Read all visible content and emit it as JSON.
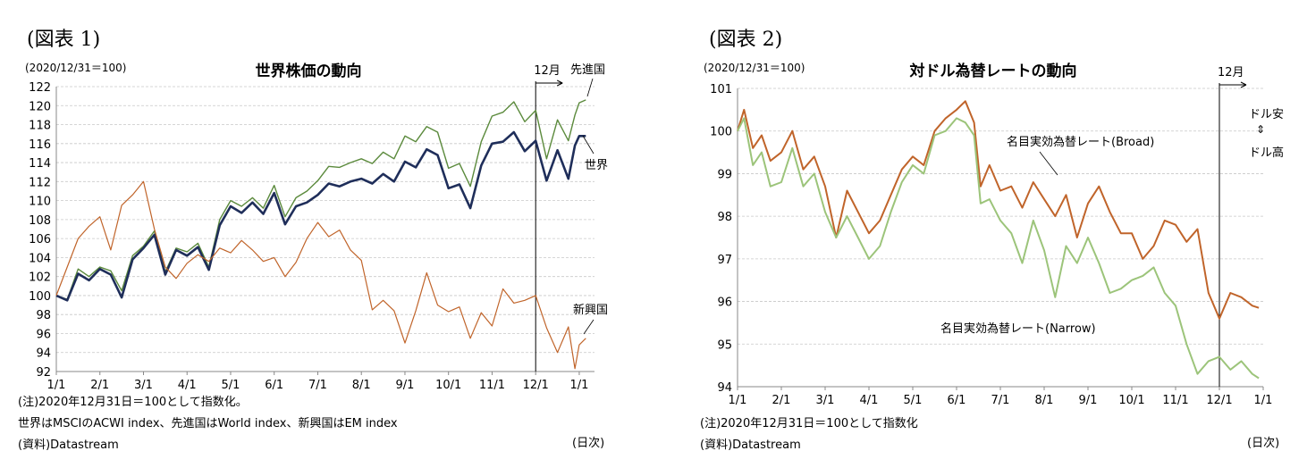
{
  "panels": [
    {
      "figure_label": "(図表 1)",
      "notes": [
        "(注)2020年12月31日＝100として指数化。",
        "世界はMSCIのACWI index、先進国はWorld index、新興国はEM index",
        "(資料)Datastream"
      ],
      "xunit": "(日次)"
    },
    {
      "figure_label": "(図表 2)",
      "notes": [
        "(注)2020年12月31日＝100として指数化",
        "(資料)Datastream"
      ],
      "xunit": "(日次)"
    }
  ],
  "chart_data": [
    {
      "type": "line",
      "title": "世界株価の動向",
      "ylabel": "(2020/12/31＝100)",
      "xlabel": "",
      "ylim": [
        92,
        122
      ],
      "ytick_step": 2,
      "x_tick_labels": [
        "1/1",
        "2/1",
        "3/1",
        "4/1",
        "5/1",
        "6/1",
        "7/1",
        "8/1",
        "9/1",
        "10/1",
        "11/1",
        "12/1",
        "1/1"
      ],
      "grid": true,
      "annotations": {
        "vline_label": "12月",
        "vline_at_month": 11
      },
      "series": [
        {
          "name": "先進国",
          "color": "#5b8a3c",
          "points": [
            [
              0,
              100
            ],
            [
              0.25,
              99.6
            ],
            [
              0.5,
              102.8
            ],
            [
              0.75,
              102
            ],
            [
              1,
              103
            ],
            [
              1.25,
              102.6
            ],
            [
              1.5,
              100.5
            ],
            [
              1.75,
              104.2
            ],
            [
              2,
              105.2
            ],
            [
              2.25,
              106.8
            ],
            [
              2.5,
              102.5
            ],
            [
              2.75,
              105
            ],
            [
              3,
              104.6
            ],
            [
              3.25,
              105.5
            ],
            [
              3.5,
              103
            ],
            [
              3.75,
              108
            ],
            [
              4,
              110
            ],
            [
              4.25,
              109.4
            ],
            [
              4.5,
              110.3
            ],
            [
              4.75,
              109.2
            ],
            [
              5,
              111.6
            ],
            [
              5.25,
              108.3
            ],
            [
              5.5,
              110.3
            ],
            [
              5.75,
              111
            ],
            [
              6,
              112.1
            ],
            [
              6.25,
              113.6
            ],
            [
              6.5,
              113.5
            ],
            [
              6.75,
              114
            ],
            [
              7,
              114.4
            ],
            [
              7.25,
              113.9
            ],
            [
              7.5,
              115.1
            ],
            [
              7.75,
              114.4
            ],
            [
              8,
              116.8
            ],
            [
              8.25,
              116.2
            ],
            [
              8.5,
              117.8
            ],
            [
              8.75,
              117.2
            ],
            [
              9,
              113.4
            ],
            [
              9.25,
              113.9
            ],
            [
              9.5,
              111.5
            ],
            [
              9.75,
              116.2
            ],
            [
              10,
              118.9
            ],
            [
              10.25,
              119.3
            ],
            [
              10.5,
              120.4
            ],
            [
              10.75,
              118.3
            ],
            [
              11,
              119.5
            ],
            [
              11.25,
              114.4
            ],
            [
              11.5,
              118.5
            ],
            [
              11.75,
              116.3
            ],
            [
              11.9,
              119
            ],
            [
              12,
              120.3
            ],
            [
              12.15,
              120.6
            ]
          ]
        },
        {
          "name": "世界",
          "color": "#1f2e5a",
          "points": [
            [
              0,
              100
            ],
            [
              0.25,
              99.5
            ],
            [
              0.5,
              102.3
            ],
            [
              0.75,
              101.6
            ],
            [
              1,
              102.8
            ],
            [
              1.25,
              102.2
            ],
            [
              1.5,
              99.8
            ],
            [
              1.75,
              103.8
            ],
            [
              2,
              105
            ],
            [
              2.25,
              106.4
            ],
            [
              2.5,
              102.2
            ],
            [
              2.75,
              104.8
            ],
            [
              3,
              104.2
            ],
            [
              3.25,
              105.1
            ],
            [
              3.5,
              102.7
            ],
            [
              3.75,
              107.4
            ],
            [
              4,
              109.4
            ],
            [
              4.25,
              108.7
            ],
            [
              4.5,
              109.8
            ],
            [
              4.75,
              108.6
            ],
            [
              5,
              110.8
            ],
            [
              5.25,
              107.5
            ],
            [
              5.5,
              109.4
            ],
            [
              5.75,
              109.8
            ],
            [
              6,
              110.6
            ],
            [
              6.25,
              111.8
            ],
            [
              6.5,
              111.5
            ],
            [
              6.75,
              112
            ],
            [
              7,
              112.3
            ],
            [
              7.25,
              111.8
            ],
            [
              7.5,
              112.8
            ],
            [
              7.75,
              112
            ],
            [
              8,
              114.1
            ],
            [
              8.25,
              113.5
            ],
            [
              8.5,
              115.4
            ],
            [
              8.75,
              114.8
            ],
            [
              9,
              111.3
            ],
            [
              9.25,
              111.7
            ],
            [
              9.5,
              109.2
            ],
            [
              9.75,
              113.7
            ],
            [
              10,
              116
            ],
            [
              10.25,
              116.2
            ],
            [
              10.5,
              117.2
            ],
            [
              10.75,
              115.2
            ],
            [
              11,
              116.3
            ],
            [
              11.25,
              112.1
            ],
            [
              11.5,
              115.3
            ],
            [
              11.75,
              112.3
            ],
            [
              11.9,
              115.8
            ],
            [
              12,
              116.8
            ],
            [
              12.15,
              116.8
            ]
          ]
        },
        {
          "name": "新興国",
          "color": "#c0642a",
          "points": [
            [
              0,
              100
            ],
            [
              0.25,
              103
            ],
            [
              0.5,
              106
            ],
            [
              0.75,
              107.3
            ],
            [
              1,
              108.3
            ],
            [
              1.25,
              104.8
            ],
            [
              1.5,
              109.5
            ],
            [
              1.75,
              110.6
            ],
            [
              2,
              112
            ],
            [
              2.25,
              107
            ],
            [
              2.5,
              103
            ],
            [
              2.75,
              101.8
            ],
            [
              3,
              103.4
            ],
            [
              3.25,
              104.3
            ],
            [
              3.5,
              103.6
            ],
            [
              3.75,
              105
            ],
            [
              4,
              104.5
            ],
            [
              4.25,
              105.8
            ],
            [
              4.5,
              104.8
            ],
            [
              4.75,
              103.6
            ],
            [
              5,
              104
            ],
            [
              5.25,
              102
            ],
            [
              5.5,
              103.5
            ],
            [
              5.75,
              106
            ],
            [
              6,
              107.7
            ],
            [
              6.25,
              106.2
            ],
            [
              6.5,
              106.9
            ],
            [
              6.75,
              104.8
            ],
            [
              7,
              103.7
            ],
            [
              7.25,
              98.5
            ],
            [
              7.5,
              99.5
            ],
            [
              7.75,
              98.4
            ],
            [
              8,
              95
            ],
            [
              8.25,
              98.4
            ],
            [
              8.5,
              102.4
            ],
            [
              8.75,
              99
            ],
            [
              9,
              98.3
            ],
            [
              9.25,
              98.8
            ],
            [
              9.5,
              95.5
            ],
            [
              9.75,
              98.2
            ],
            [
              10,
              96.8
            ],
            [
              10.25,
              100.7
            ],
            [
              10.5,
              99.2
            ],
            [
              10.75,
              99.5
            ],
            [
              11,
              100
            ],
            [
              11.25,
              96.6
            ],
            [
              11.5,
              94
            ],
            [
              11.75,
              96.7
            ],
            [
              11.9,
              92.3
            ],
            [
              12,
              94.8
            ],
            [
              12.15,
              95.5
            ]
          ]
        }
      ]
    },
    {
      "type": "line",
      "title": "対ドル為替レートの動向",
      "ylabel": "(2020/12/31＝100)",
      "xlabel": "",
      "ylim": [
        94,
        101
      ],
      "ytick_step": 1,
      "x_tick_labels": [
        "1/1",
        "2/1",
        "3/1",
        "4/1",
        "5/1",
        "6/1",
        "7/1",
        "8/1",
        "9/1",
        "10/1",
        "11/1",
        "12/1",
        "1/1"
      ],
      "grid": true,
      "annotations": {
        "vline_label": "12月",
        "vline_at_month": 11,
        "right_top": "ドル安",
        "right_arrow": "⇕",
        "right_bottom": "ドル高"
      },
      "series": [
        {
          "name": "名目実効為替レート(Broad)",
          "color": "#c0642a",
          "points": [
            [
              0,
              100
            ],
            [
              0.15,
              100.5
            ],
            [
              0.35,
              99.6
            ],
            [
              0.55,
              99.9
            ],
            [
              0.75,
              99.3
            ],
            [
              1,
              99.5
            ],
            [
              1.25,
              100
            ],
            [
              1.5,
              99.1
            ],
            [
              1.75,
              99.4
            ],
            [
              2,
              98.7
            ],
            [
              2.25,
              97.5
            ],
            [
              2.5,
              98.6
            ],
            [
              2.75,
              98.1
            ],
            [
              3,
              97.6
            ],
            [
              3.25,
              97.9
            ],
            [
              3.5,
              98.5
            ],
            [
              3.75,
              99.1
            ],
            [
              4,
              99.4
            ],
            [
              4.25,
              99.2
            ],
            [
              4.5,
              100
            ],
            [
              4.75,
              100.3
            ],
            [
              5,
              100.5
            ],
            [
              5.2,
              100.7
            ],
            [
              5.4,
              100.2
            ],
            [
              5.55,
              98.7
            ],
            [
              5.75,
              99.2
            ],
            [
              6,
              98.6
            ],
            [
              6.25,
              98.7
            ],
            [
              6.5,
              98.2
            ],
            [
              6.75,
              98.8
            ],
            [
              7,
              98.4
            ],
            [
              7.25,
              98
            ],
            [
              7.5,
              98.5
            ],
            [
              7.75,
              97.5
            ],
            [
              8,
              98.3
            ],
            [
              8.25,
              98.7
            ],
            [
              8.5,
              98.1
            ],
            [
              8.75,
              97.6
            ],
            [
              9,
              97.6
            ],
            [
              9.25,
              97
            ],
            [
              9.5,
              97.3
            ],
            [
              9.75,
              97.9
            ],
            [
              10,
              97.8
            ],
            [
              10.25,
              97.4
            ],
            [
              10.5,
              97.7
            ],
            [
              10.75,
              96.2
            ],
            [
              11,
              95.6
            ],
            [
              11.25,
              96.2
            ],
            [
              11.5,
              96.1
            ],
            [
              11.75,
              95.9
            ],
            [
              11.9,
              95.85
            ]
          ]
        },
        {
          "name": "名目実効為替レート(Narrow)",
          "color": "#9cc47a",
          "points": [
            [
              0,
              100
            ],
            [
              0.15,
              100.3
            ],
            [
              0.35,
              99.2
            ],
            [
              0.55,
              99.5
            ],
            [
              0.75,
              98.7
            ],
            [
              1,
              98.8
            ],
            [
              1.25,
              99.6
            ],
            [
              1.5,
              98.7
            ],
            [
              1.75,
              99
            ],
            [
              2,
              98.1
            ],
            [
              2.25,
              97.5
            ],
            [
              2.5,
              98
            ],
            [
              2.75,
              97.5
            ],
            [
              3,
              97
            ],
            [
              3.25,
              97.3
            ],
            [
              3.5,
              98.1
            ],
            [
              3.75,
              98.8
            ],
            [
              4,
              99.2
            ],
            [
              4.25,
              99
            ],
            [
              4.5,
              99.9
            ],
            [
              4.75,
              100
            ],
            [
              5,
              100.3
            ],
            [
              5.2,
              100.2
            ],
            [
              5.4,
              99.9
            ],
            [
              5.55,
              98.3
            ],
            [
              5.75,
              98.4
            ],
            [
              6,
              97.9
            ],
            [
              6.25,
              97.6
            ],
            [
              6.5,
              96.9
            ],
            [
              6.75,
              97.9
            ],
            [
              7,
              97.2
            ],
            [
              7.25,
              96.1
            ],
            [
              7.5,
              97.3
            ],
            [
              7.75,
              96.9
            ],
            [
              8,
              97.5
            ],
            [
              8.25,
              96.9
            ],
            [
              8.5,
              96.2
            ],
            [
              8.75,
              96.3
            ],
            [
              9,
              96.5
            ],
            [
              9.25,
              96.6
            ],
            [
              9.5,
              96.8
            ],
            [
              9.75,
              96.2
            ],
            [
              10,
              95.9
            ],
            [
              10.25,
              95
            ],
            [
              10.5,
              94.3
            ],
            [
              10.75,
              94.6
            ],
            [
              11,
              94.7
            ],
            [
              11.25,
              94.4
            ],
            [
              11.5,
              94.6
            ],
            [
              11.75,
              94.3
            ],
            [
              11.9,
              94.2
            ]
          ]
        }
      ]
    }
  ]
}
